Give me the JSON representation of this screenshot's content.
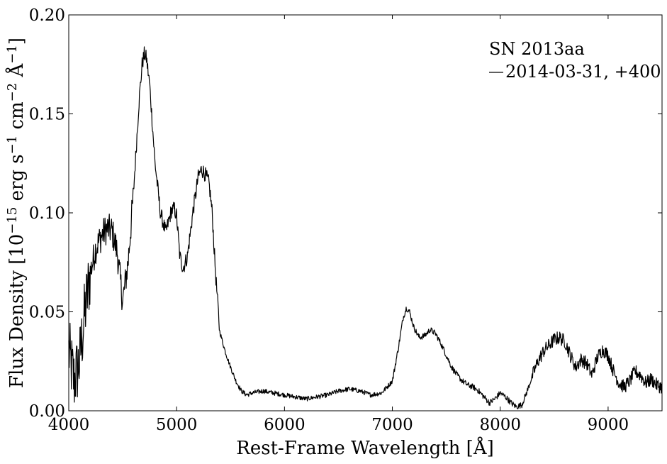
{
  "chart_data": {
    "type": "line",
    "title": "",
    "xlabel": "Rest-Frame Wavelength [Å]",
    "ylabel": "Flux Density [10",
    "ylabel_parts": {
      "base": "Flux Density [10",
      "exp1": "−15",
      "mid": " erg s",
      "exp2": "−1",
      "mid2": " cm",
      "exp3": "−2",
      "end": " Å",
      "exp4": "−1",
      "close": "]"
    },
    "xlim": [
      4000,
      9500
    ],
    "ylim": [
      0.0,
      0.2
    ],
    "x_ticks": [
      4000,
      5000,
      6000,
      7000,
      8000,
      9000
    ],
    "x_tick_labels": [
      "4000",
      "5000",
      "6000",
      "7000",
      "8000",
      "9000"
    ],
    "y_ticks": [
      0.0,
      0.05,
      0.1,
      0.15,
      0.2
    ],
    "y_tick_labels": [
      "0.00",
      "0.05",
      "0.10",
      "0.15",
      "0.20"
    ],
    "grid": false,
    "legend_position": "top-right",
    "legend_title": "SN 2013aa",
    "line_color": "#000000",
    "series": [
      {
        "name": "2014-03-31, +400",
        "x": [
          4000,
          4050,
          4100,
          4150,
          4200,
          4250,
          4300,
          4350,
          4400,
          4450,
          4500,
          4550,
          4600,
          4650,
          4680,
          4700,
          4720,
          4750,
          4800,
          4850,
          4900,
          4950,
          4980,
          5000,
          5030,
          5060,
          5100,
          5150,
          5200,
          5230,
          5260,
          5300,
          5330,
          5360,
          5400,
          5450,
          5500,
          5550,
          5600,
          5650,
          5700,
          5800,
          5900,
          6000,
          6100,
          6200,
          6300,
          6400,
          6500,
          6600,
          6700,
          6800,
          6900,
          7000,
          7050,
          7100,
          7130,
          7160,
          7200,
          7250,
          7300,
          7350,
          7400,
          7450,
          7500,
          7550,
          7600,
          7650,
          7700,
          7750,
          7800,
          7850,
          7900,
          7950,
          8000,
          8050,
          8100,
          8150,
          8200,
          8250,
          8300,
          8350,
          8400,
          8450,
          8500,
          8550,
          8600,
          8650,
          8700,
          8750,
          8800,
          8850,
          8900,
          8950,
          9000,
          9050,
          9100,
          9150,
          9200,
          9250,
          9300,
          9350,
          9400,
          9450,
          9500
        ],
        "y": [
          0.03,
          0.015,
          0.025,
          0.05,
          0.07,
          0.082,
          0.088,
          0.092,
          0.091,
          0.08,
          0.055,
          0.075,
          0.11,
          0.155,
          0.175,
          0.18,
          0.178,
          0.165,
          0.125,
          0.1,
          0.09,
          0.101,
          0.102,
          0.098,
          0.078,
          0.072,
          0.078,
          0.1,
          0.118,
          0.122,
          0.12,
          0.115,
          0.1,
          0.07,
          0.04,
          0.03,
          0.022,
          0.015,
          0.01,
          0.008,
          0.009,
          0.01,
          0.009,
          0.008,
          0.007,
          0.006,
          0.007,
          0.008,
          0.01,
          0.011,
          0.01,
          0.008,
          0.009,
          0.015,
          0.03,
          0.047,
          0.052,
          0.05,
          0.042,
          0.037,
          0.038,
          0.041,
          0.039,
          0.034,
          0.028,
          0.022,
          0.018,
          0.015,
          0.013,
          0.012,
          0.01,
          0.007,
          0.004,
          0.006,
          0.009,
          0.007,
          0.004,
          0.002,
          0.003,
          0.01,
          0.018,
          0.025,
          0.03,
          0.033,
          0.036,
          0.037,
          0.035,
          0.028,
          0.022,
          0.026,
          0.024,
          0.018,
          0.027,
          0.031,
          0.028,
          0.02,
          0.014,
          0.012,
          0.015,
          0.02,
          0.018,
          0.014,
          0.016,
          0.013,
          0.012
        ]
      }
    ]
  }
}
